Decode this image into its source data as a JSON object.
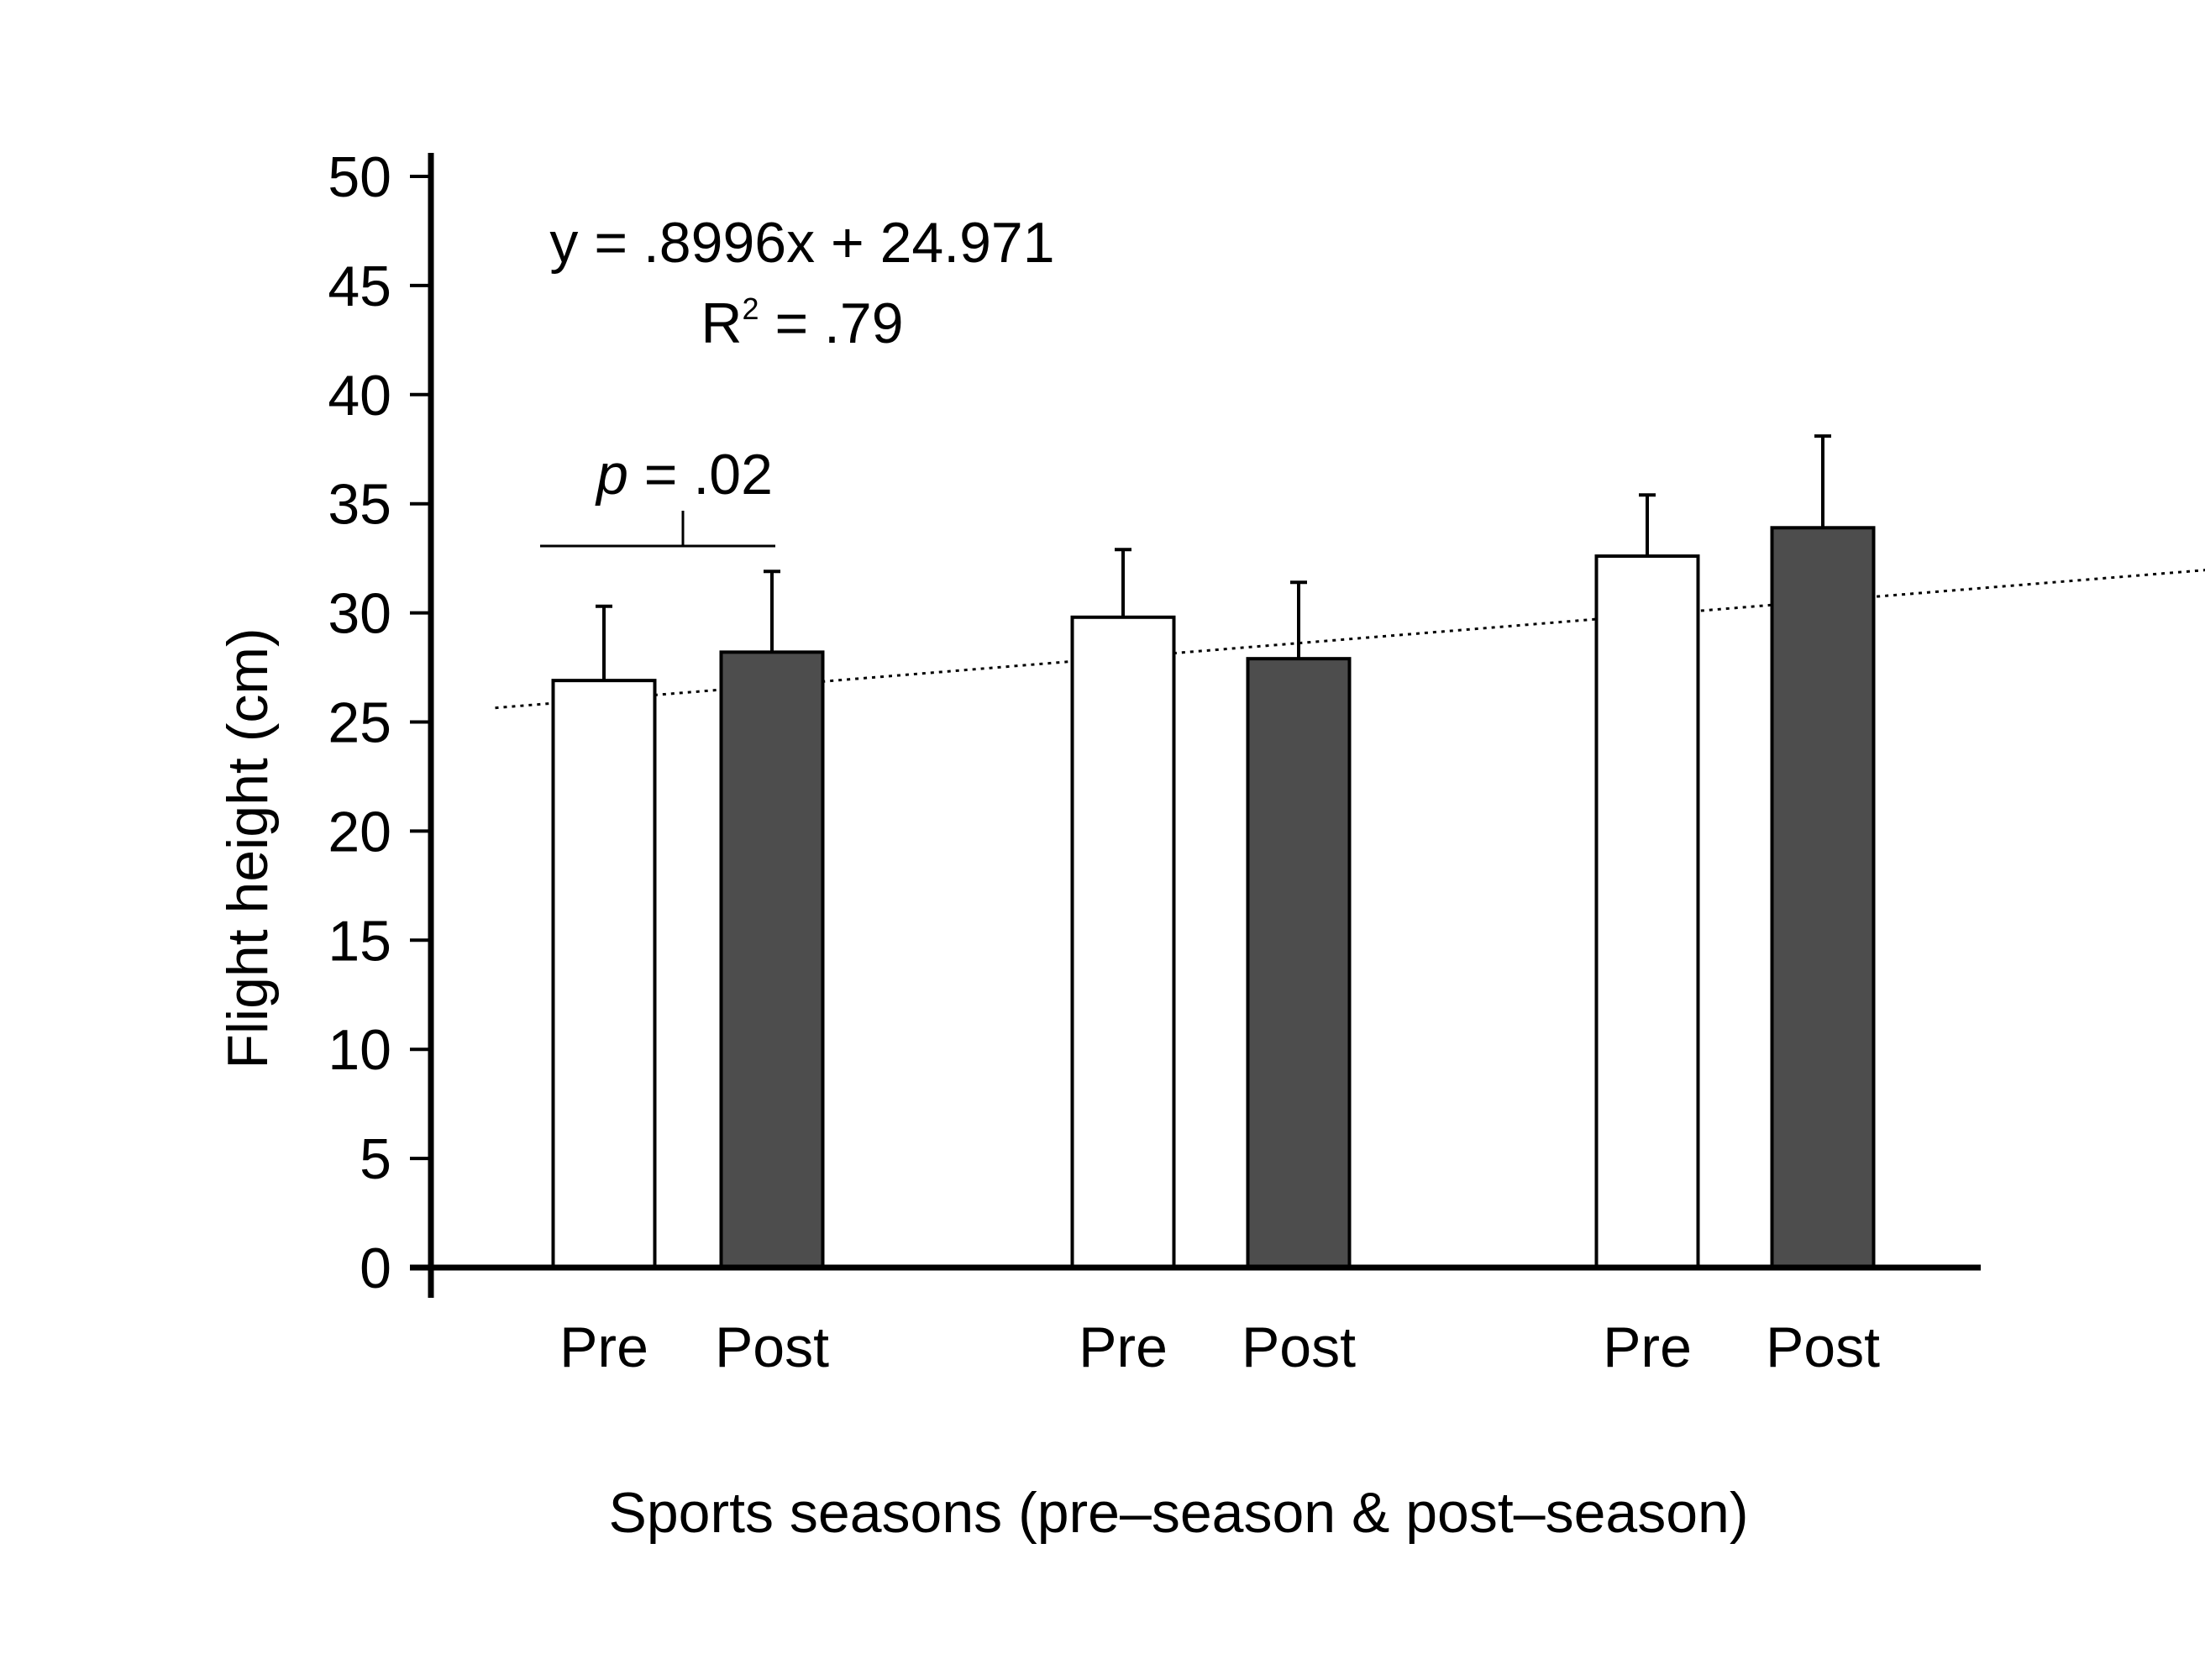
{
  "chart_data": {
    "type": "bar",
    "title": "",
    "xlabel": "Sports seasons (pre–season & post–season)",
    "ylabel": "Flight height (cm)",
    "ylim": [
      0,
      50
    ],
    "yticks": [
      "0",
      "5",
      "10",
      "15",
      "20",
      "25",
      "30",
      "35",
      "40",
      "45",
      "50"
    ],
    "grid": false,
    "categories": [
      "Pre",
      "Post",
      "Pre",
      "Post",
      "Pre",
      "Post"
    ],
    "values": [
      26.9,
      28.2,
      29.8,
      27.9,
      32.6,
      33.9
    ],
    "errors": [
      3.4,
      3.7,
      3.1,
      3.5,
      2.8,
      4.2
    ],
    "bar_colors": [
      "#ffffff",
      "#4d4d4d",
      "#ffffff",
      "#4d4d4d",
      "#ffffff",
      "#4d4d4d"
    ],
    "trendline": {
      "slope": 0.8996,
      "intercept": 24.971,
      "equation_label": "y = .8996x + 24.971",
      "r2_prefix": "R",
      "r2_sup": "2",
      "r2_rest": " = .79"
    },
    "significance": {
      "p_italic": "p",
      "p_rest": " = .02",
      "between": [
        0,
        1
      ]
    }
  }
}
